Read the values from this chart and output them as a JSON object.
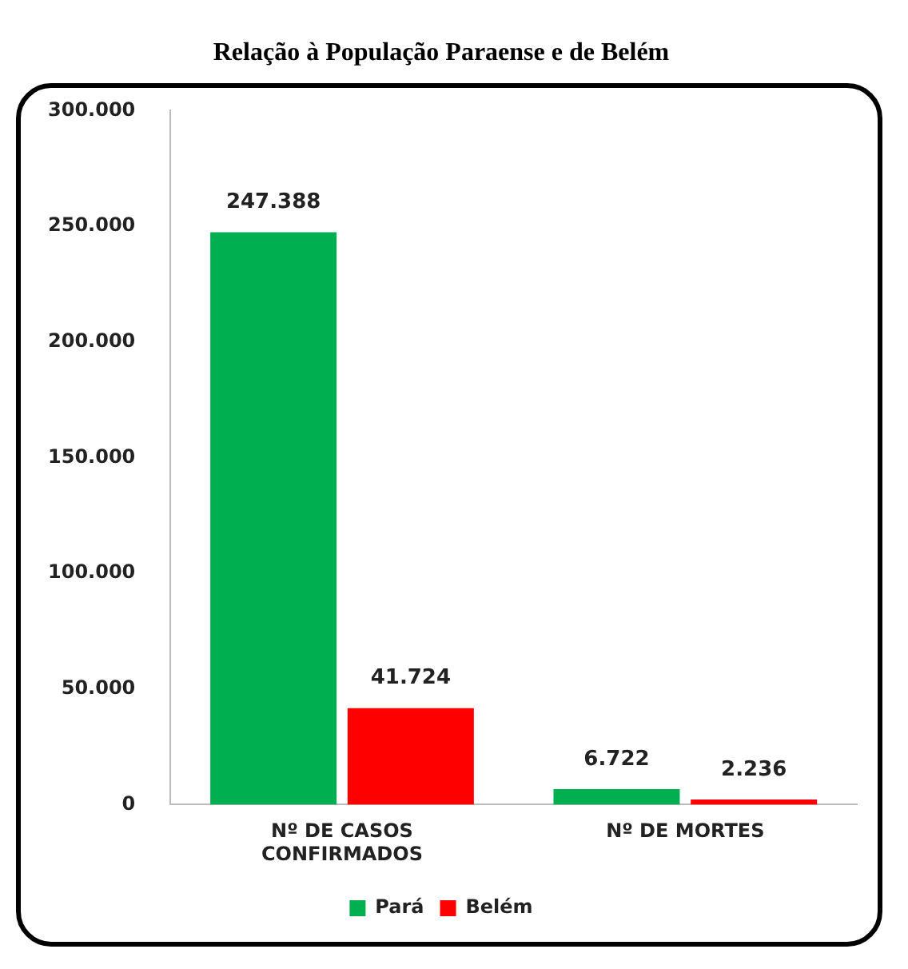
{
  "chart_data": {
    "type": "bar",
    "title": "Relação à População Paraense e de Belém",
    "categories": [
      "Nº DE CASOS CONFIRMADOS",
      "Nº DE MORTES"
    ],
    "series": [
      {
        "name": "Pará",
        "color": "#00b050",
        "values": [
          247388,
          6722
        ],
        "value_labels": [
          "247.388",
          "6.722"
        ]
      },
      {
        "name": "Belém",
        "color": "#ff0000",
        "values": [
          41724,
          2236
        ],
        "value_labels": [
          "41.724",
          "2.236"
        ]
      }
    ],
    "ylim": [
      0,
      300000
    ],
    "yticks": [
      {
        "value": 0,
        "label": "0"
      },
      {
        "value": 50000,
        "label": "50.000"
      },
      {
        "value": 100000,
        "label": "100.000"
      },
      {
        "value": 150000,
        "label": "150.000"
      },
      {
        "value": 200000,
        "label": "200.000"
      },
      {
        "value": 250000,
        "label": "250.000"
      },
      {
        "value": 300000,
        "label": "300.000"
      }
    ],
    "grid": false,
    "legend": "bottom"
  }
}
